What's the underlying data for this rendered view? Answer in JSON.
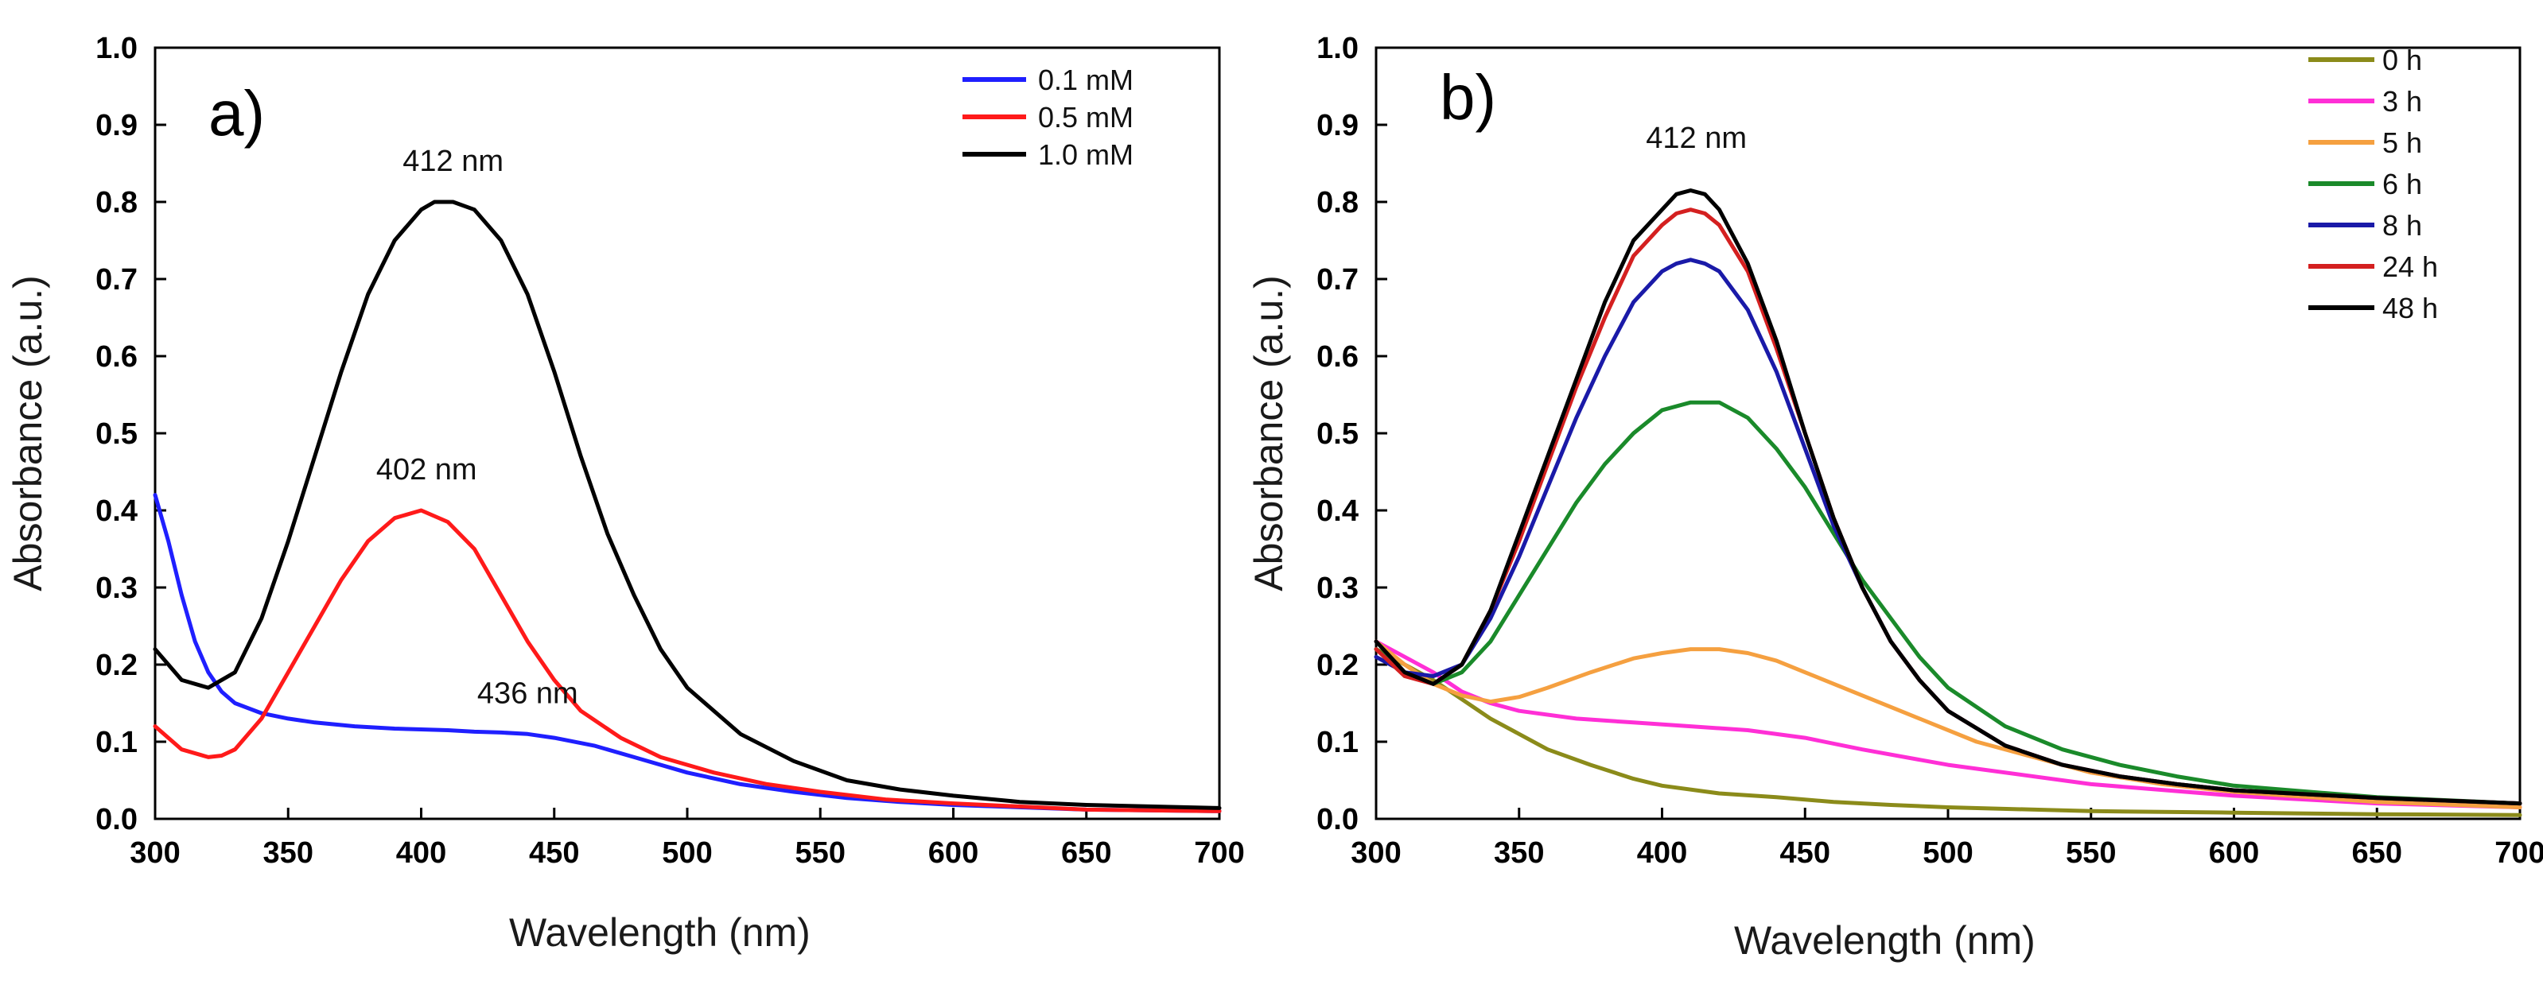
{
  "chart_data": [
    {
      "type": "line",
      "panel_label": "a)",
      "xlabel": "Wavelength (nm)",
      "ylabel": "Absorbance (a.u.)",
      "xlim": [
        300,
        700
      ],
      "ylim": [
        0,
        1.0
      ],
      "x_ticks": [
        "300",
        "350",
        "400",
        "450",
        "500",
        "550",
        "600",
        "650",
        "700"
      ],
      "y_ticks": [
        "0.0",
        "0.1",
        "0.2",
        "0.3",
        "0.4",
        "0.5",
        "0.6",
        "0.7",
        "0.8",
        "0.9",
        "1.0"
      ],
      "legend_position": "top-right",
      "series": [
        {
          "name": "0.1 mM",
          "color": "#1f1fff",
          "x": [
            300,
            305,
            310,
            315,
            320,
            325,
            330,
            340,
            350,
            360,
            375,
            390,
            400,
            410,
            420,
            430,
            440,
            450,
            465,
            480,
            500,
            520,
            540,
            560,
            580,
            600,
            650,
            700
          ],
          "y": [
            0.42,
            0.36,
            0.29,
            0.23,
            0.19,
            0.165,
            0.15,
            0.137,
            0.13,
            0.125,
            0.12,
            0.117,
            0.116,
            0.115,
            0.113,
            0.112,
            0.11,
            0.105,
            0.095,
            0.08,
            0.06,
            0.045,
            0.035,
            0.027,
            0.022,
            0.018,
            0.012,
            0.01
          ]
        },
        {
          "name": "0.5 mM",
          "color": "#ff1a1a",
          "x": [
            300,
            310,
            320,
            325,
            330,
            340,
            350,
            360,
            370,
            380,
            390,
            400,
            410,
            420,
            430,
            440,
            450,
            460,
            475,
            490,
            510,
            530,
            550,
            575,
            600,
            650,
            700
          ],
          "y": [
            0.12,
            0.09,
            0.08,
            0.082,
            0.09,
            0.13,
            0.19,
            0.25,
            0.31,
            0.36,
            0.39,
            0.4,
            0.385,
            0.35,
            0.29,
            0.23,
            0.18,
            0.14,
            0.105,
            0.08,
            0.06,
            0.045,
            0.035,
            0.025,
            0.02,
            0.012,
            0.01
          ]
        },
        {
          "name": "1.0 mM",
          "color": "#000000",
          "x": [
            300,
            310,
            320,
            330,
            340,
            350,
            360,
            370,
            380,
            390,
            400,
            405,
            412,
            420,
            430,
            440,
            450,
            460,
            470,
            480,
            490,
            500,
            520,
            540,
            560,
            580,
            600,
            625,
            650,
            700
          ],
          "y": [
            0.22,
            0.18,
            0.17,
            0.19,
            0.26,
            0.36,
            0.47,
            0.58,
            0.68,
            0.75,
            0.79,
            0.8,
            0.8,
            0.79,
            0.75,
            0.68,
            0.58,
            0.47,
            0.37,
            0.29,
            0.22,
            0.17,
            0.11,
            0.075,
            0.05,
            0.038,
            0.03,
            0.022,
            0.018,
            0.014
          ]
        }
      ],
      "annotations": [
        {
          "text": "412 nm",
          "x": 412,
          "y": 0.84
        },
        {
          "text": "402 nm",
          "x": 402,
          "y": 0.44
        },
        {
          "text": "436 nm",
          "x": 440,
          "y": 0.15
        }
      ]
    },
    {
      "type": "line",
      "panel_label": "b)",
      "xlabel": "Wavelength (nm)",
      "ylabel": "Absorbance (a.u.)",
      "xlim": [
        300,
        700
      ],
      "ylim": [
        0,
        1.0
      ],
      "x_ticks": [
        "300",
        "350",
        "400",
        "450",
        "500",
        "550",
        "600",
        "650",
        "700"
      ],
      "y_ticks": [
        "0.0",
        "0.1",
        "0.2",
        "0.3",
        "0.4",
        "0.5",
        "0.6",
        "0.7",
        "0.8",
        "0.9",
        "1.0"
      ],
      "legend_position": "top-right",
      "series": [
        {
          "name": "0 h",
          "color": "#8b8b1a",
          "x": [
            300,
            310,
            320,
            330,
            340,
            350,
            360,
            375,
            390,
            400,
            420,
            440,
            460,
            480,
            500,
            550,
            600,
            650,
            700
          ],
          "y": [
            0.22,
            0.2,
            0.18,
            0.155,
            0.13,
            0.11,
            0.09,
            0.07,
            0.052,
            0.043,
            0.033,
            0.028,
            0.022,
            0.018,
            0.015,
            0.01,
            0.008,
            0.006,
            0.005
          ]
        },
        {
          "name": "3 h",
          "color": "#ff2fd6",
          "x": [
            300,
            310,
            320,
            330,
            340,
            350,
            370,
            390,
            410,
            430,
            450,
            470,
            500,
            550,
            600,
            650,
            700
          ],
          "y": [
            0.23,
            0.21,
            0.19,
            0.165,
            0.15,
            0.14,
            0.13,
            0.125,
            0.12,
            0.115,
            0.105,
            0.09,
            0.07,
            0.045,
            0.03,
            0.02,
            0.015
          ]
        },
        {
          "name": "5 h",
          "color": "#f5a040",
          "x": [
            300,
            310,
            320,
            330,
            340,
            350,
            360,
            375,
            390,
            400,
            410,
            420,
            430,
            440,
            450,
            470,
            490,
            510,
            530,
            550,
            575,
            600,
            650,
            700
          ],
          "y": [
            0.23,
            0.2,
            0.175,
            0.16,
            0.152,
            0.158,
            0.17,
            0.19,
            0.208,
            0.215,
            0.22,
            0.22,
            0.215,
            0.205,
            0.19,
            0.16,
            0.13,
            0.1,
            0.08,
            0.06,
            0.045,
            0.035,
            0.022,
            0.015
          ]
        },
        {
          "name": "6 h",
          "color": "#1a8a2a",
          "x": [
            300,
            310,
            320,
            330,
            340,
            350,
            360,
            370,
            380,
            390,
            400,
            410,
            420,
            430,
            440,
            450,
            460,
            470,
            480,
            490,
            500,
            520,
            540,
            560,
            580,
            600,
            650,
            700
          ],
          "y": [
            0.22,
            0.19,
            0.175,
            0.19,
            0.23,
            0.29,
            0.35,
            0.41,
            0.46,
            0.5,
            0.53,
            0.54,
            0.54,
            0.52,
            0.48,
            0.43,
            0.37,
            0.31,
            0.26,
            0.21,
            0.17,
            0.12,
            0.09,
            0.07,
            0.055,
            0.043,
            0.028,
            0.02
          ]
        },
        {
          "name": "8 h",
          "color": "#1a1aa8",
          "x": [
            300,
            310,
            320,
            330,
            340,
            350,
            360,
            370,
            380,
            390,
            400,
            405,
            410,
            415,
            420,
            430,
            440,
            450,
            460,
            470,
            480,
            490,
            500,
            520,
            540,
            560,
            580,
            600,
            650,
            700
          ],
          "y": [
            0.21,
            0.19,
            0.185,
            0.2,
            0.26,
            0.34,
            0.43,
            0.52,
            0.6,
            0.67,
            0.71,
            0.72,
            0.725,
            0.72,
            0.71,
            0.66,
            0.58,
            0.48,
            0.38,
            0.3,
            0.23,
            0.18,
            0.14,
            0.095,
            0.07,
            0.055,
            0.045,
            0.037,
            0.027,
            0.02
          ]
        },
        {
          "name": "24 h",
          "color": "#d42020",
          "x": [
            300,
            310,
            320,
            330,
            340,
            350,
            360,
            370,
            380,
            390,
            400,
            405,
            410,
            415,
            420,
            430,
            440,
            450,
            460,
            470,
            480,
            490,
            500,
            520,
            540,
            560,
            580,
            600,
            650,
            700
          ],
          "y": [
            0.22,
            0.185,
            0.175,
            0.2,
            0.27,
            0.36,
            0.46,
            0.56,
            0.65,
            0.73,
            0.77,
            0.785,
            0.79,
            0.785,
            0.77,
            0.71,
            0.61,
            0.5,
            0.39,
            0.3,
            0.23,
            0.18,
            0.14,
            0.095,
            0.07,
            0.055,
            0.045,
            0.037,
            0.027,
            0.02
          ]
        },
        {
          "name": "48 h",
          "color": "#000000",
          "x": [
            300,
            310,
            320,
            330,
            340,
            350,
            360,
            370,
            380,
            390,
            400,
            405,
            410,
            415,
            420,
            430,
            440,
            450,
            460,
            470,
            480,
            490,
            500,
            520,
            540,
            560,
            580,
            600,
            650,
            700
          ],
          "y": [
            0.23,
            0.19,
            0.175,
            0.2,
            0.27,
            0.37,
            0.47,
            0.57,
            0.67,
            0.75,
            0.79,
            0.81,
            0.815,
            0.81,
            0.79,
            0.72,
            0.62,
            0.5,
            0.39,
            0.3,
            0.23,
            0.18,
            0.14,
            0.095,
            0.07,
            0.055,
            0.045,
            0.037,
            0.027,
            0.02
          ]
        }
      ],
      "annotations": [
        {
          "text": "412 nm",
          "x": 412,
          "y": 0.87
        }
      ]
    }
  ]
}
